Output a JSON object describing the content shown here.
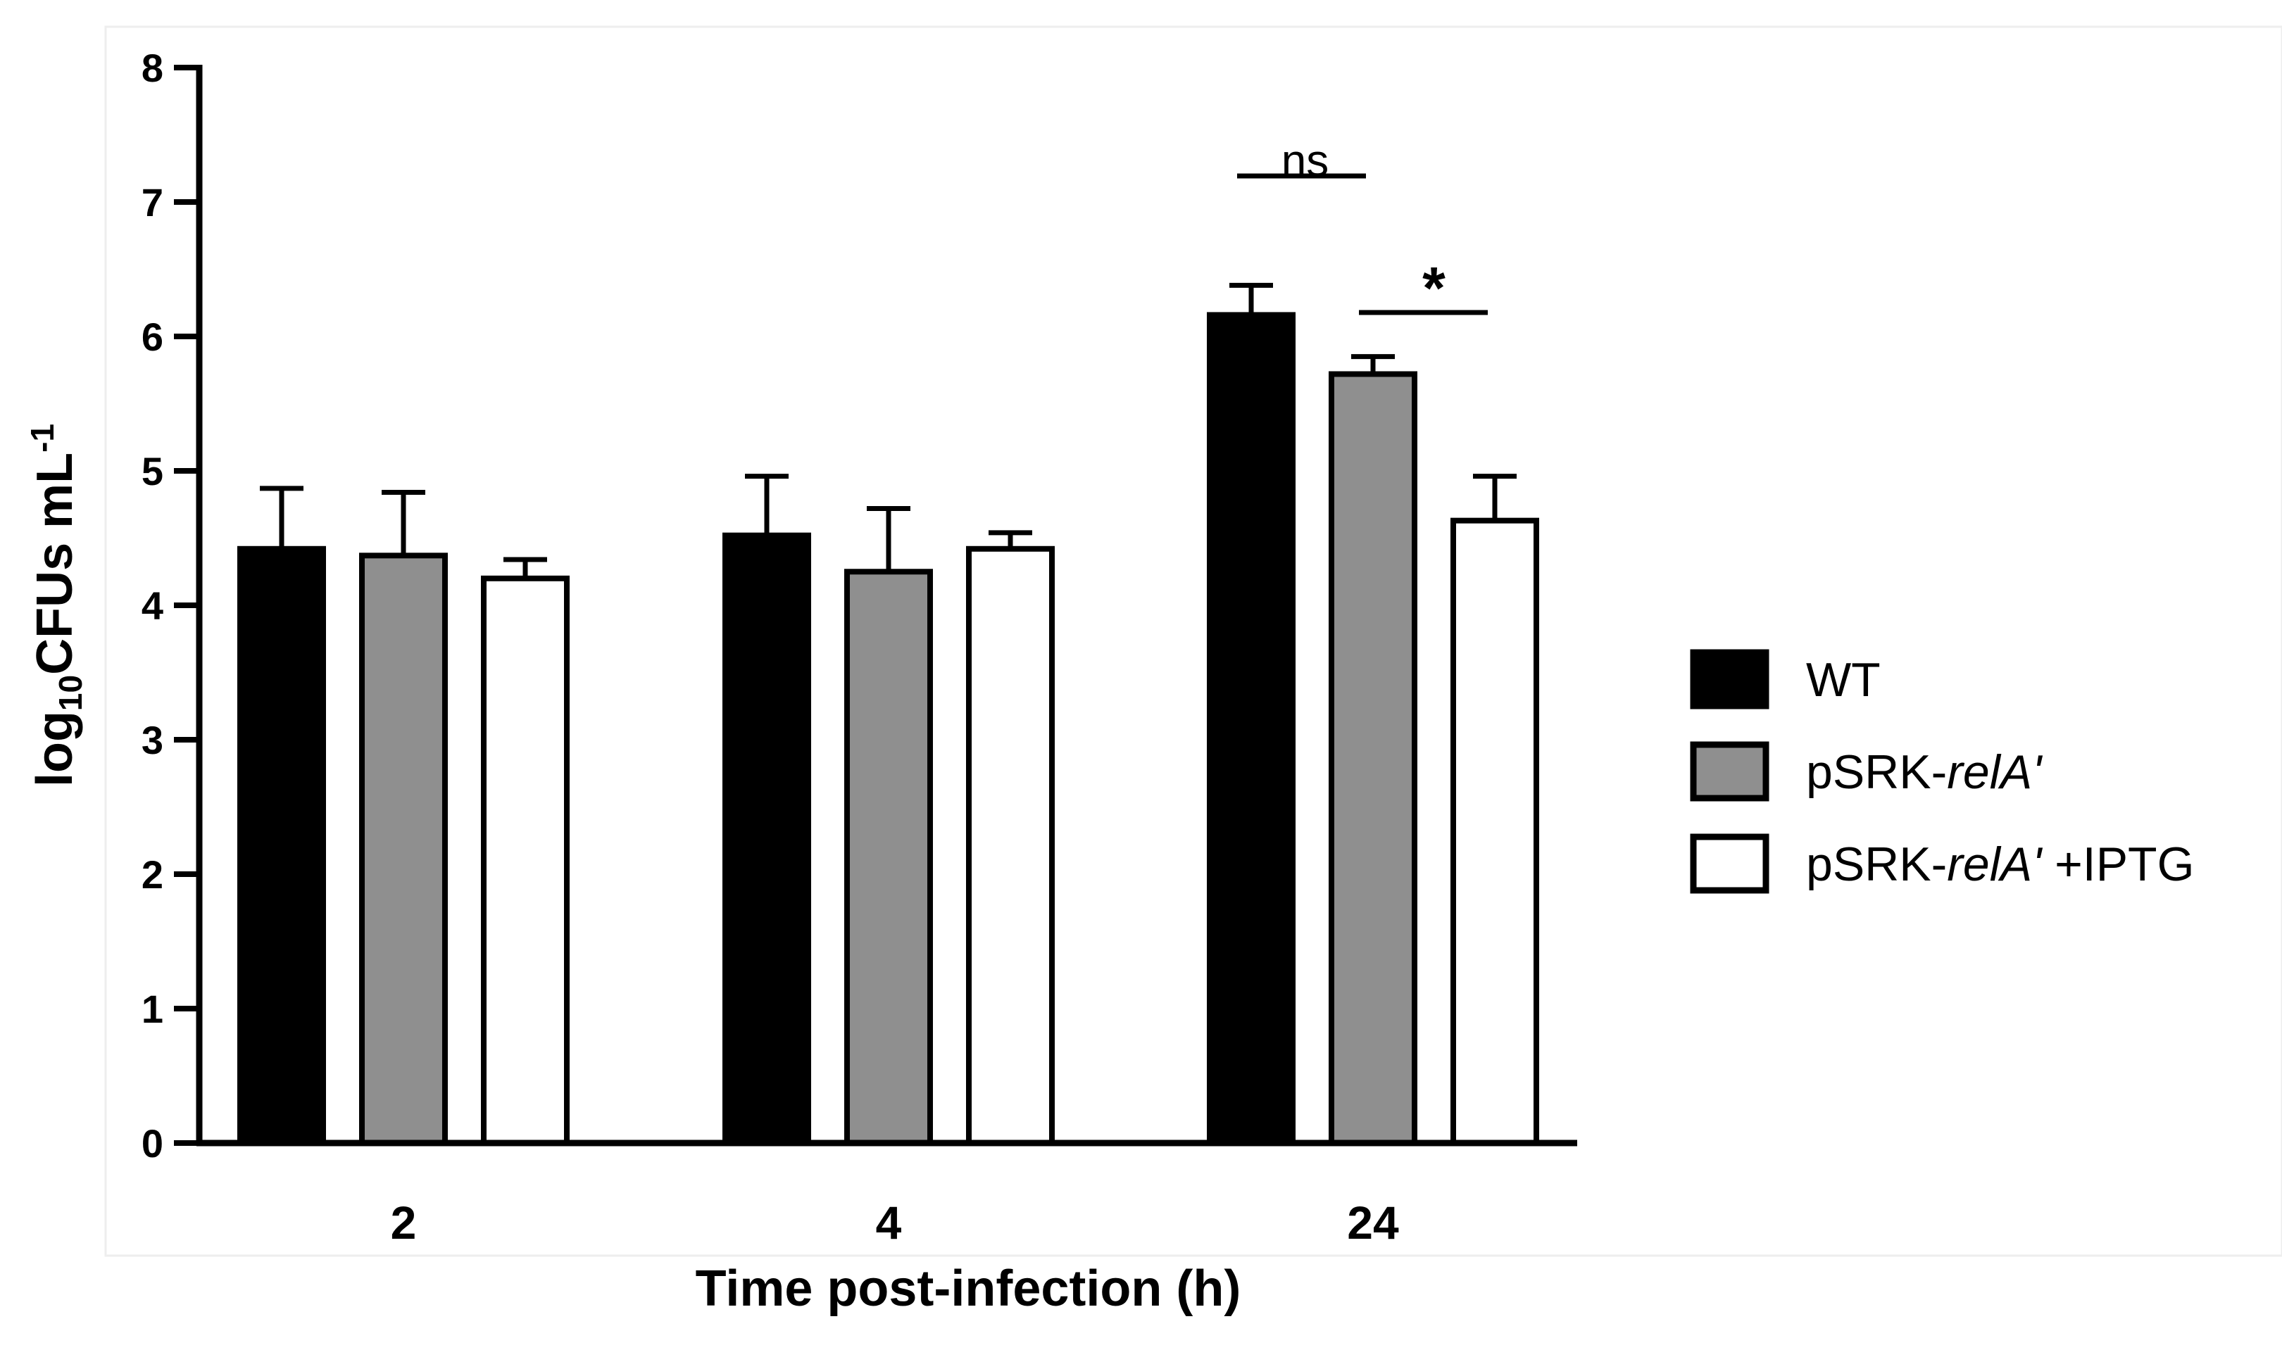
{
  "chart_data": {
    "type": "bar",
    "title": "",
    "xlabel": "Time post-infection (h)",
    "ylabel": {
      "base": "log",
      "sub": "10",
      "main": "CFUs mL",
      "sup": "-1"
    },
    "ylim": [
      0,
      8
    ],
    "yticks": [
      0,
      1,
      2,
      3,
      4,
      5,
      6,
      7,
      8
    ],
    "categories": [
      "2",
      "4",
      "24"
    ],
    "series": [
      {
        "name": "WT",
        "name_parts": {
          "plain": "WT",
          "italic": "",
          "suffix": ""
        },
        "fill": "#000000",
        "values": [
          4.42,
          4.52,
          6.16
        ],
        "errors": [
          0.45,
          0.44,
          0.22
        ]
      },
      {
        "name": "pSRK-relA'",
        "name_parts": {
          "plain": "pSRK-",
          "italic": "relA'",
          "suffix": ""
        },
        "fill": "#8f8f8f",
        "values": [
          4.37,
          4.25,
          5.72
        ],
        "errors": [
          0.47,
          0.47,
          0.13
        ]
      },
      {
        "name": "pSRK-relA' +IPTG",
        "name_parts": {
          "plain": "pSRK-",
          "italic": "relA'",
          "suffix": " +IPTG"
        },
        "fill": "#ffffff",
        "values": [
          4.2,
          4.42,
          4.63
        ],
        "errors": [
          0.14,
          0.12,
          0.33
        ]
      }
    ],
    "significance": [
      {
        "category": "24",
        "from_series": 0,
        "to_series": 1,
        "label": "ns"
      },
      {
        "category": "24",
        "from_series": 1,
        "to_series": 2,
        "label": "*"
      }
    ],
    "legend_position": "right"
  }
}
